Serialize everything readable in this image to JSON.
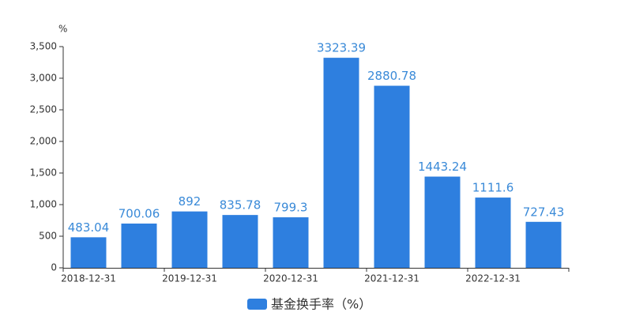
{
  "chart_data": {
    "type": "bar",
    "y_unit": "%",
    "categories": [
      "2018-12-31",
      null,
      "2019-12-31",
      null,
      "2020-12-31",
      null,
      "2021-12-31",
      null,
      "2022-12-31",
      null
    ],
    "series": [
      {
        "name": "基金换手率（%）",
        "color": "#2e7fdf",
        "values": [
          483.04,
          700.06,
          892,
          835.78,
          799.3,
          3323.39,
          2880.78,
          1443.24,
          1111.6,
          727.43
        ]
      }
    ],
    "ylim": [
      0,
      3500
    ],
    "yticks": [
      0,
      500,
      {
        "value": 1000,
        "label": "1,000"
      },
      {
        "value": 1500,
        "label": "1,500"
      },
      {
        "value": 2000,
        "label": "2,000"
      },
      {
        "value": 2500,
        "label": "2,500"
      },
      {
        "value": 3000,
        "label": "3,000"
      },
      {
        "value": 3500,
        "label": "3,500"
      }
    ],
    "grid": false,
    "legend": "bottom"
  }
}
